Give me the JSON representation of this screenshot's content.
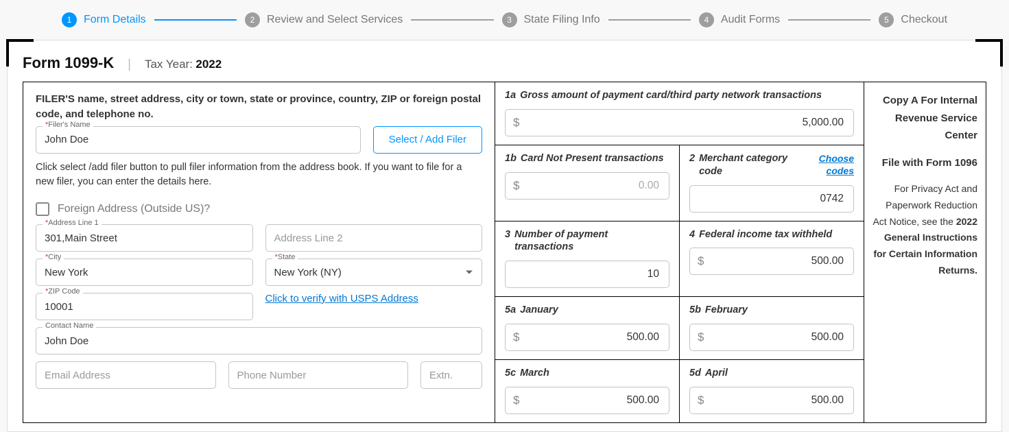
{
  "stepper": {
    "steps": [
      {
        "num": "1",
        "label": "Form Details",
        "active": true
      },
      {
        "num": "2",
        "label": "Review and Select Services",
        "active": false
      },
      {
        "num": "3",
        "label": "State Filing Info",
        "active": false
      },
      {
        "num": "4",
        "label": "Audit Forms",
        "active": false
      },
      {
        "num": "5",
        "label": "Checkout",
        "active": false
      }
    ]
  },
  "header": {
    "form_title": "Form 1099-K",
    "tax_year_label": "Tax Year:",
    "tax_year_value": "2022"
  },
  "filer": {
    "heading": "FILER'S name, street address, city or town, state or province, country, ZIP or foreign postal code, and telephone no.",
    "name_label": "Filer's Name",
    "name_value": "John Doe",
    "select_add_btn": "Select / Add Filer",
    "hint": "Click select /add filer button to pull filer information from the address book. If you want to file for a new filer, you can enter the details here.",
    "foreign_label": "Foreign Address (Outside US)?",
    "addr1_label": "Address Line 1",
    "addr1_value": "301,Main Street",
    "addr2_placeholder": "Address Line 2",
    "city_label": "City",
    "city_value": "New York",
    "state_label": "State",
    "state_value": "New York (NY)",
    "zip_label": "ZIP Code",
    "zip_value": "10001",
    "verify_link": "Click to verify with USPS Address",
    "contact_label": "Contact Name",
    "contact_value": "John Doe",
    "email_placeholder": "Email Address",
    "phone_placeholder": "Phone Number",
    "extn_placeholder": "Extn."
  },
  "boxes": {
    "b1a": {
      "num": "1a",
      "label": "Gross amount of payment card/third party network transactions",
      "value": "5,000.00"
    },
    "b1b": {
      "num": "1b",
      "label": "Card Not Present transactions",
      "value": "0.00"
    },
    "b2": {
      "num": "2",
      "label": "Merchant category code",
      "link": "Choose codes",
      "value": "0742"
    },
    "b3": {
      "num": "3",
      "label": "Number of payment transactions",
      "value": "10"
    },
    "b4": {
      "num": "4",
      "label": "Federal income tax withheld",
      "value": "500.00"
    },
    "b5a": {
      "num": "5a",
      "label": "January",
      "value": "500.00"
    },
    "b5b": {
      "num": "5b",
      "label": "February",
      "value": "500.00"
    },
    "b5c": {
      "num": "5c",
      "label": "March",
      "value": "500.00"
    },
    "b5d": {
      "num": "5d",
      "label": "April",
      "value": "500.00"
    }
  },
  "sidebar": {
    "copy_a": "Copy A For Internal Revenue Service Center",
    "file_with": "File with Form 1096",
    "notice_pre": "For Privacy Act and Paperwork Reduction Act Notice, see the ",
    "notice_bold": "2022 General Instructions for Certain Information Returns."
  }
}
